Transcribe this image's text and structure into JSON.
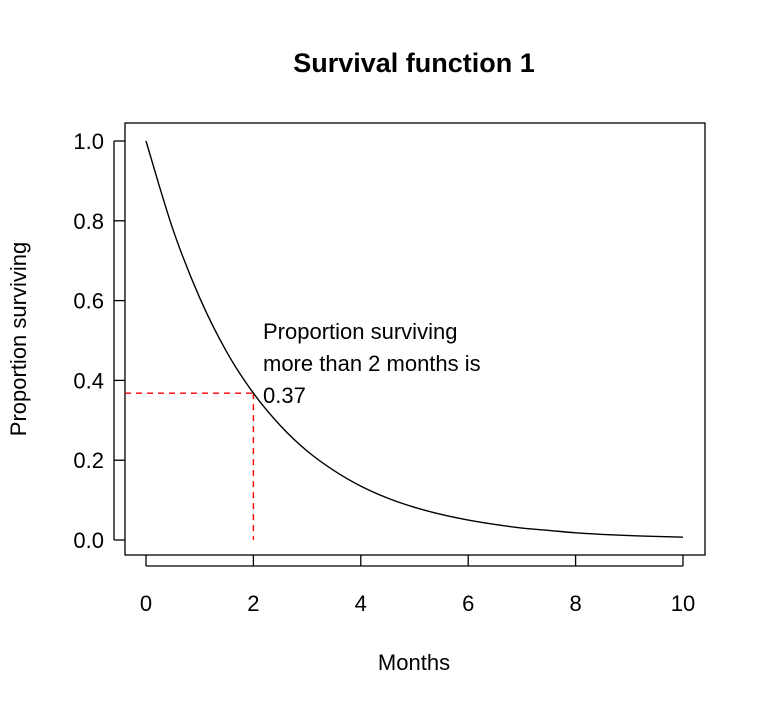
{
  "chart_data": {
    "type": "line",
    "title": "Survival function 1",
    "xlabel": "Months",
    "ylabel": "Proportion surviving",
    "xlim": [
      0,
      10
    ],
    "ylim": [
      0,
      1
    ],
    "xticks": [
      "0",
      "2",
      "4",
      "6",
      "8",
      "10"
    ],
    "yticks": [
      "0.0",
      "0.2",
      "0.4",
      "0.6",
      "0.8",
      "1.0"
    ],
    "grid": false,
    "line_color": "#000000",
    "series": [
      {
        "x": [
          0,
          0.5,
          1,
          1.5,
          2,
          2.5,
          3,
          3.5,
          4,
          4.5,
          5,
          5.5,
          6,
          6.5,
          7,
          7.5,
          8,
          8.5,
          9,
          9.5,
          10
        ],
        "y": [
          1,
          0.779,
          0.607,
          0.472,
          0.368,
          0.287,
          0.223,
          0.174,
          0.135,
          0.105,
          0.082,
          0.064,
          0.05,
          0.039,
          0.03,
          0.024,
          0.018,
          0.014,
          0.011,
          0.009,
          0.007
        ]
      }
    ],
    "reference": {
      "x": 2,
      "y": 0.368,
      "color": "#ff0000",
      "style": "dashed"
    },
    "annotation": {
      "lines": [
        "Proportion surviving",
        "more than 2 months is",
        "0.37"
      ],
      "x": 2.2,
      "y": 0.43
    }
  }
}
